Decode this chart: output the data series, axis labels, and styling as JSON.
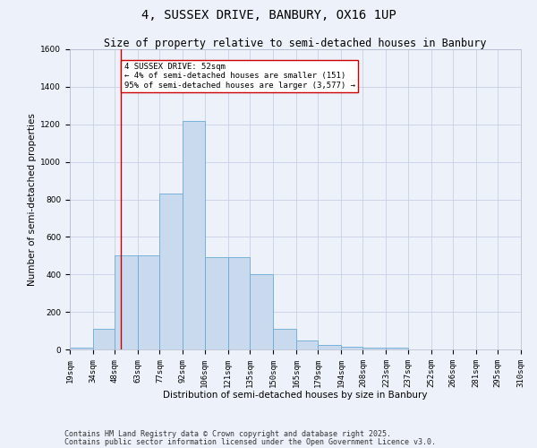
{
  "title": "4, SUSSEX DRIVE, BANBURY, OX16 1UP",
  "subtitle": "Size of property relative to semi-detached houses in Banbury",
  "xlabel": "Distribution of semi-detached houses by size in Banbury",
  "ylabel": "Number of semi-detached properties",
  "bin_edges": [
    19,
    34,
    48,
    63,
    77,
    92,
    106,
    121,
    135,
    150,
    165,
    179,
    194,
    208,
    223,
    237,
    252,
    266,
    281,
    295,
    310
  ],
  "bar_heights": [
    10,
    110,
    500,
    500,
    830,
    1220,
    490,
    490,
    400,
    110,
    50,
    25,
    15,
    10,
    10,
    0,
    0,
    0,
    0,
    0
  ],
  "bar_color": "#c9d9ee",
  "bar_edgecolor": "#6aaad4",
  "grid_color": "#c8d0e8",
  "background_color": "#edf1fa",
  "red_line_x": 52,
  "annotation_title": "4 SUSSEX DRIVE: 52sqm",
  "annotation_line1": "← 4% of semi-detached houses are smaller (151)",
  "annotation_line2": "95% of semi-detached houses are larger (3,577) →",
  "footnote1": "Contains HM Land Registry data © Crown copyright and database right 2025.",
  "footnote2": "Contains public sector information licensed under the Open Government Licence v3.0.",
  "ylim": [
    0,
    1600
  ],
  "yticks": [
    0,
    200,
    400,
    600,
    800,
    1000,
    1200,
    1400,
    1600
  ],
  "title_fontsize": 10,
  "subtitle_fontsize": 8.5,
  "tick_fontsize": 6.5,
  "label_fontsize": 7.5,
  "footnote_fontsize": 6,
  "ann_fontsize": 6.5
}
